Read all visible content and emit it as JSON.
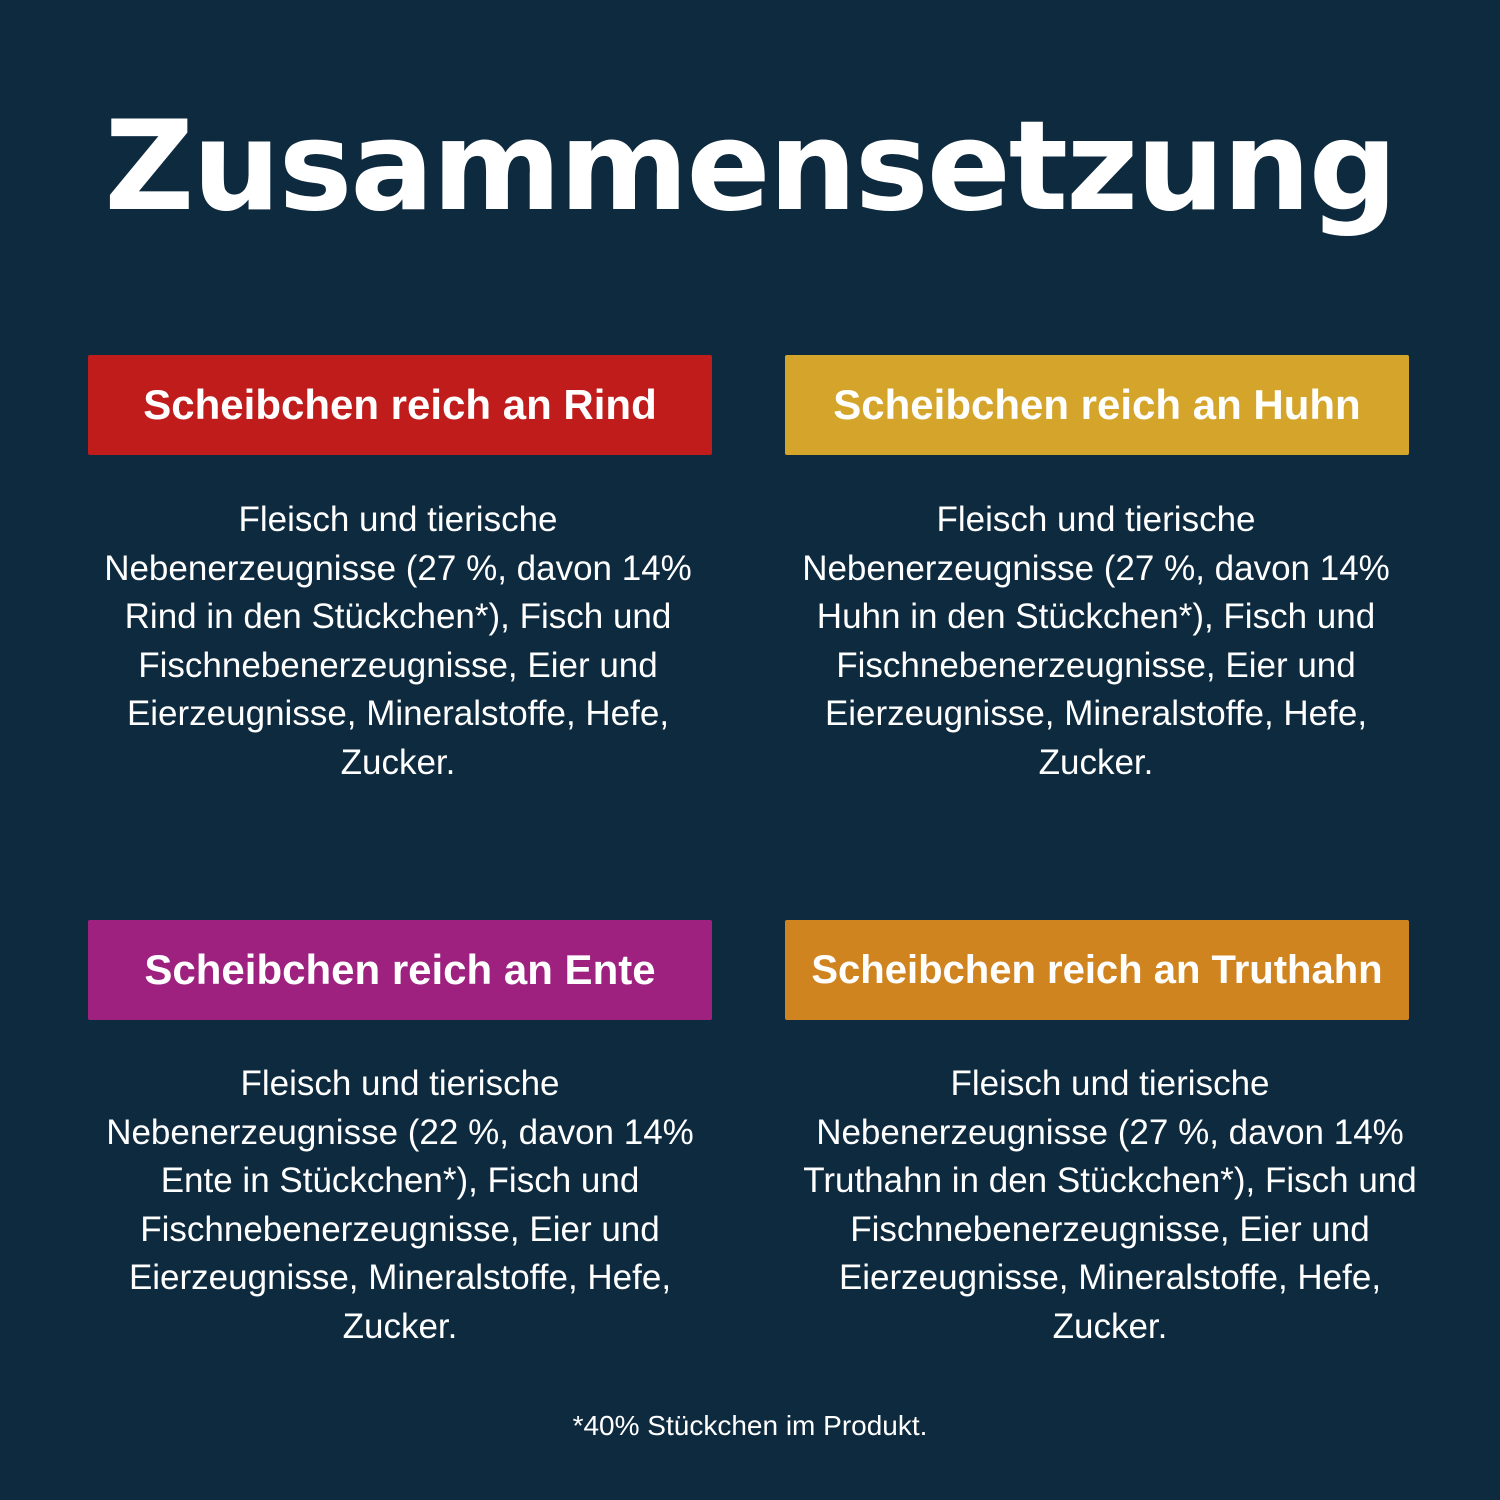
{
  "title": "Zusammensetzung",
  "colors": {
    "background": "#0e2a3f",
    "rind": "#c01c1c",
    "huhn": "#d4a52a",
    "ente": "#9e2180",
    "truthahn": "#d08420"
  },
  "sections": [
    {
      "heading": "Scheibchen reich an Rind",
      "lines": [
        "Fleisch und tierische",
        "Nebenerzeugnisse (27 %, davon 14%",
        "Rind in den Stückchen*), Fisch und",
        "Fischnebenerzeugnisse, Eier und",
        "Eierzeugnisse, Mineralstoffe, Hefe,",
        "Zucker."
      ]
    },
    {
      "heading": "Scheibchen reich an Huhn",
      "lines": [
        "Fleisch und tierische",
        "Nebenerzeugnisse (27 %, davon 14%",
        "Huhn in den Stückchen*), Fisch und",
        "Fischnebenerzeugnisse, Eier und",
        "Eierzeugnisse, Mineralstoffe, Hefe,",
        "Zucker."
      ]
    },
    {
      "heading": "Scheibchen reich an Ente",
      "lines": [
        "Fleisch und tierische",
        "Nebenerzeugnisse (22 %, davon 14%",
        "Ente in Stückchen*), Fisch und",
        "Fischnebenerzeugnisse, Eier und",
        "Eierzeugnisse, Mineralstoffe, Hefe,",
        "Zucker."
      ]
    },
    {
      "heading": "Scheibchen reich an Truthahn",
      "lines": [
        "Fleisch und tierische",
        "Nebenerzeugnisse (27 %, davon 14%",
        "Truthahn in den Stückchen*), Fisch und",
        "Fischnebenerzeugnisse, Eier und",
        "Eierzeugnisse, Mineralstoffe, Hefe,",
        "Zucker."
      ]
    }
  ],
  "footnote": "*40% Stückchen im Produkt."
}
